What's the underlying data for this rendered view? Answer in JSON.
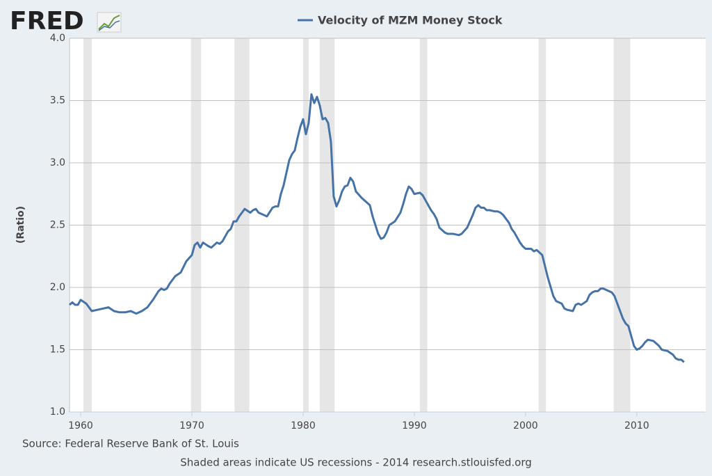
{
  "logo": "FRED",
  "chart_data": {
    "type": "line",
    "y_label": "(Ratio)",
    "source": "Source: Federal Reserve Bank of St. Louis",
    "note": "Shaded areas indicate US recessions - 2014 research.stlouisfed.org",
    "xlim": [
      1959,
      2016.2
    ],
    "xticks": [
      1960,
      1970,
      1980,
      1990,
      2000,
      2010
    ],
    "ylim": [
      1.0,
      4.0
    ],
    "yticks": [
      {
        "value": 1.0,
        "label": "1.0"
      },
      {
        "value": 1.5,
        "label": "1.5"
      },
      {
        "value": 2.0,
        "label": "2.0"
      },
      {
        "value": 2.5,
        "label": "2.5"
      },
      {
        "value": 3.0,
        "label": "3.0"
      },
      {
        "value": 3.5,
        "label": "3.5"
      },
      {
        "value": 4.0,
        "label": "4.0"
      }
    ],
    "grid": true,
    "recession_color": "#e6e6e6",
    "recessions": [
      [
        1960.25,
        1961.0
      ],
      [
        1969.92,
        1970.83
      ],
      [
        1973.83,
        1975.17
      ],
      [
        1980.0,
        1980.5
      ],
      [
        1981.5,
        1982.83
      ],
      [
        1990.5,
        1991.17
      ],
      [
        2001.17,
        2001.83
      ],
      [
        2007.92,
        2009.42
      ]
    ],
    "x": [
      1959.0,
      1959.25,
      1959.5,
      1959.75,
      1960.0,
      1960.5,
      1961.0,
      1961.5,
      1962.0,
      1962.5,
      1963.0,
      1963.5,
      1964.0,
      1964.5,
      1965.0,
      1965.5,
      1966.0,
      1966.5,
      1967.0,
      1967.25,
      1967.5,
      1967.75,
      1968.0,
      1968.5,
      1969.0,
      1969.5,
      1970.0,
      1970.25,
      1970.5,
      1970.75,
      1971.0,
      1971.5,
      1971.75,
      1972.25,
      1972.5,
      1972.75,
      1973.25,
      1973.5,
      1973.75,
      1974.0,
      1974.25,
      1974.75,
      1975.25,
      1975.5,
      1975.75,
      1976.0,
      1976.5,
      1976.75,
      1977.25,
      1977.5,
      1977.75,
      1978.0,
      1978.25,
      1978.5,
      1978.75,
      1979.0,
      1979.25,
      1979.5,
      1979.75,
      1980.0,
      1980.25,
      1980.5,
      1980.75,
      1981.0,
      1981.25,
      1981.5,
      1981.75,
      1982.0,
      1982.25,
      1982.5,
      1982.75,
      1983.0,
      1983.25,
      1983.5,
      1983.75,
      1984.0,
      1984.25,
      1984.5,
      1984.75,
      1985.25,
      1985.75,
      1986.0,
      1986.25,
      1986.75,
      1987.0,
      1987.25,
      1987.5,
      1987.75,
      1988.25,
      1988.75,
      1989.0,
      1989.25,
      1989.5,
      1989.75,
      1990.0,
      1990.5,
      1990.75,
      1991.0,
      1991.5,
      1991.75,
      1992.0,
      1992.25,
      1992.75,
      1993.0,
      1993.5,
      1994.0,
      1994.25,
      1994.75,
      1995.0,
      1995.25,
      1995.5,
      1995.75,
      1996.0,
      1996.25,
      1996.5,
      1996.75,
      1997.25,
      1997.5,
      1997.75,
      1998.0,
      1998.5,
      1998.75,
      1999.0,
      1999.5,
      1999.75,
      2000.0,
      2000.5,
      2000.75,
      2001.0,
      2001.5,
      2001.75,
      2002.0,
      2002.5,
      2002.75,
      2003.25,
      2003.5,
      2003.75,
      2004.25,
      2004.5,
      2004.75,
      2005.0,
      2005.5,
      2005.75,
      2006.0,
      2006.25,
      2006.5,
      2006.75,
      2007.0,
      2007.5,
      2007.75,
      2008.0,
      2008.25,
      2008.5,
      2008.75,
      2009.0,
      2009.25,
      2009.5,
      2009.75,
      2010.0,
      2010.25,
      2010.5,
      2010.75,
      2011.0,
      2011.5,
      2011.75,
      2012.0,
      2012.25,
      2012.75,
      2013.25,
      2013.5,
      2013.75,
      2014.0,
      2014.25
    ],
    "series": [
      {
        "name": "Velocity of MZM Money Stock",
        "color": "#4572a7",
        "values": [
          1.86,
          1.88,
          1.86,
          1.86,
          1.9,
          1.87,
          1.81,
          1.82,
          1.83,
          1.84,
          1.81,
          1.8,
          1.8,
          1.81,
          1.79,
          1.81,
          1.84,
          1.9,
          1.97,
          1.99,
          1.98,
          1.99,
          2.03,
          2.09,
          2.12,
          2.21,
          2.26,
          2.34,
          2.36,
          2.32,
          2.36,
          2.33,
          2.32,
          2.36,
          2.35,
          2.37,
          2.45,
          2.47,
          2.53,
          2.53,
          2.57,
          2.63,
          2.6,
          2.62,
          2.63,
          2.6,
          2.58,
          2.57,
          2.64,
          2.65,
          2.65,
          2.75,
          2.82,
          2.92,
          3.02,
          3.07,
          3.1,
          3.2,
          3.29,
          3.35,
          3.23,
          3.32,
          3.55,
          3.48,
          3.53,
          3.46,
          3.35,
          3.36,
          3.32,
          3.17,
          2.73,
          2.65,
          2.7,
          2.77,
          2.81,
          2.82,
          2.88,
          2.85,
          2.77,
          2.72,
          2.68,
          2.66,
          2.57,
          2.43,
          2.39,
          2.4,
          2.44,
          2.5,
          2.53,
          2.6,
          2.67,
          2.75,
          2.81,
          2.79,
          2.75,
          2.76,
          2.74,
          2.7,
          2.62,
          2.59,
          2.55,
          2.48,
          2.44,
          2.43,
          2.43,
          2.42,
          2.43,
          2.48,
          2.53,
          2.58,
          2.64,
          2.66,
          2.64,
          2.64,
          2.62,
          2.62,
          2.61,
          2.61,
          2.6,
          2.58,
          2.52,
          2.47,
          2.44,
          2.36,
          2.33,
          2.31,
          2.31,
          2.29,
          2.3,
          2.26,
          2.17,
          2.08,
          1.93,
          1.89,
          1.87,
          1.83,
          1.82,
          1.81,
          1.86,
          1.87,
          1.86,
          1.89,
          1.94,
          1.96,
          1.97,
          1.97,
          1.99,
          1.99,
          1.97,
          1.96,
          1.93,
          1.87,
          1.81,
          1.75,
          1.71,
          1.69,
          1.61,
          1.53,
          1.5,
          1.51,
          1.53,
          1.56,
          1.58,
          1.57,
          1.55,
          1.53,
          1.5,
          1.49,
          1.46,
          1.43,
          1.42,
          1.42,
          1.4
        ]
      }
    ]
  }
}
